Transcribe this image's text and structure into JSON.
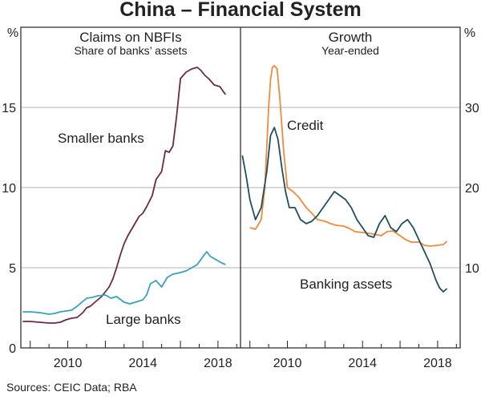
{
  "title": "China – Financial System",
  "source": "Sources: CEIC Data; RBA",
  "chart_data": [
    {
      "type": "line",
      "title": "Claims on NBFIs",
      "subtitle": "Share of banks’ assets",
      "yunit": "%",
      "ylim": [
        0,
        20
      ],
      "yticks": [
        0,
        5,
        10,
        15
      ],
      "xlim": [
        2007.5,
        2019.2
      ],
      "xticks": [
        2010,
        2014,
        2018
      ],
      "grid": true,
      "series": [
        {
          "name": "Smaller banks",
          "color": "#6b2a45",
          "x": [
            2007.6,
            2008.0,
            2008.5,
            2009.0,
            2009.3,
            2009.6,
            2009.9,
            2010.2,
            2010.5,
            2010.8,
            2011.0,
            2011.2,
            2011.4,
            2011.6,
            2011.8,
            2012.0,
            2012.2,
            2012.4,
            2012.6,
            2012.8,
            2013.0,
            2013.2,
            2013.5,
            2013.8,
            2014.0,
            2014.2,
            2014.5,
            2014.7,
            2015.0,
            2015.2,
            2015.4,
            2015.6,
            2015.8,
            2016.0,
            2016.3,
            2016.6,
            2016.9,
            2017.1,
            2017.3,
            2017.5,
            2017.8,
            2018.1,
            2018.4
          ],
          "y": [
            1.65,
            1.65,
            1.6,
            1.55,
            1.55,
            1.6,
            1.75,
            1.85,
            1.9,
            2.2,
            2.5,
            2.6,
            2.8,
            3.0,
            3.2,
            3.5,
            3.8,
            4.3,
            5.0,
            5.8,
            6.5,
            7.0,
            7.6,
            8.2,
            8.4,
            8.8,
            9.5,
            10.5,
            11.0,
            12.3,
            12.2,
            12.6,
            14.5,
            16.8,
            17.2,
            17.4,
            17.5,
            17.3,
            17.0,
            16.8,
            16.4,
            16.3,
            15.8
          ]
        },
        {
          "name": "Large banks",
          "color": "#3a9fc0",
          "x": [
            2007.6,
            2008.0,
            2008.5,
            2009.0,
            2009.3,
            2009.6,
            2009.9,
            2010.2,
            2010.5,
            2010.8,
            2011.0,
            2011.3,
            2011.6,
            2012.0,
            2012.3,
            2012.6,
            2013.0,
            2013.3,
            2013.6,
            2014.0,
            2014.2,
            2014.4,
            2014.7,
            2015.0,
            2015.3,
            2015.6,
            2016.0,
            2016.3,
            2016.6,
            2016.9,
            2017.2,
            2017.4,
            2017.6,
            2017.9,
            2018.2,
            2018.4
          ],
          "y": [
            2.25,
            2.25,
            2.2,
            2.1,
            2.15,
            2.25,
            2.3,
            2.35,
            2.6,
            2.9,
            3.1,
            3.15,
            3.25,
            3.3,
            3.1,
            3.2,
            2.85,
            2.75,
            2.85,
            3.0,
            3.3,
            4.0,
            4.2,
            3.8,
            4.4,
            4.6,
            4.7,
            4.8,
            5.0,
            5.2,
            5.7,
            6.0,
            5.7,
            5.5,
            5.3,
            5.2
          ]
        }
      ]
    },
    {
      "type": "line",
      "title": "Growth",
      "subtitle": "Year-ended",
      "yunit": "%",
      "ylim": [
        0,
        40
      ],
      "yticks": [
        10,
        20,
        30
      ],
      "xlim": [
        2007.5,
        2019.2
      ],
      "xticks": [
        2010,
        2014,
        2018
      ],
      "grid": true,
      "series": [
        {
          "name": "Credit",
          "color": "#f08a3c",
          "x": [
            2008.0,
            2008.3,
            2008.6,
            2008.8,
            2009.0,
            2009.1,
            2009.2,
            2009.3,
            2009.45,
            2009.6,
            2009.8,
            2010.0,
            2010.3,
            2010.6,
            2011.0,
            2011.3,
            2011.6,
            2012.0,
            2012.3,
            2012.6,
            2013.0,
            2013.3,
            2013.6,
            2014.0,
            2014.3,
            2014.6,
            2015.0,
            2015.3,
            2015.6,
            2016.0,
            2016.3,
            2016.6,
            2017.0,
            2017.3,
            2017.6,
            2018.0,
            2018.3,
            2018.5
          ],
          "y": [
            15.0,
            14.8,
            16.0,
            20.0,
            30.0,
            33.5,
            35.0,
            35.2,
            34.8,
            31.0,
            24.5,
            20.0,
            19.5,
            18.8,
            17.5,
            16.8,
            16.0,
            15.8,
            15.5,
            15.3,
            15.2,
            14.9,
            14.5,
            14.4,
            14.3,
            14.2,
            14.0,
            14.5,
            14.6,
            14.0,
            13.5,
            13.2,
            13.2,
            12.8,
            12.7,
            12.8,
            12.9,
            13.3
          ]
        },
        {
          "name": "Banking assets",
          "color": "#1f4e61",
          "x": [
            2007.6,
            2007.8,
            2008.0,
            2008.3,
            2008.6,
            2008.9,
            2009.1,
            2009.3,
            2009.5,
            2009.7,
            2009.9,
            2010.1,
            2010.4,
            2010.7,
            2011.0,
            2011.3,
            2011.6,
            2011.9,
            2012.2,
            2012.5,
            2012.8,
            2013.1,
            2013.4,
            2013.7,
            2014.0,
            2014.3,
            2014.6,
            2014.9,
            2015.2,
            2015.5,
            2015.8,
            2016.1,
            2016.4,
            2016.7,
            2017.0,
            2017.3,
            2017.6,
            2017.9,
            2018.1,
            2018.3,
            2018.5
          ],
          "y": [
            24.0,
            21.5,
            18.5,
            16.0,
            17.5,
            22.0,
            26.5,
            27.5,
            26.0,
            22.5,
            19.5,
            17.5,
            17.5,
            16.0,
            15.5,
            15.8,
            16.5,
            17.5,
            18.5,
            19.5,
            19.0,
            18.5,
            17.5,
            16.0,
            15.0,
            14.0,
            13.8,
            15.5,
            16.5,
            15.0,
            14.5,
            15.5,
            16.0,
            15.0,
            13.5,
            12.0,
            10.5,
            8.5,
            7.5,
            7.0,
            7.4
          ]
        }
      ]
    }
  ]
}
